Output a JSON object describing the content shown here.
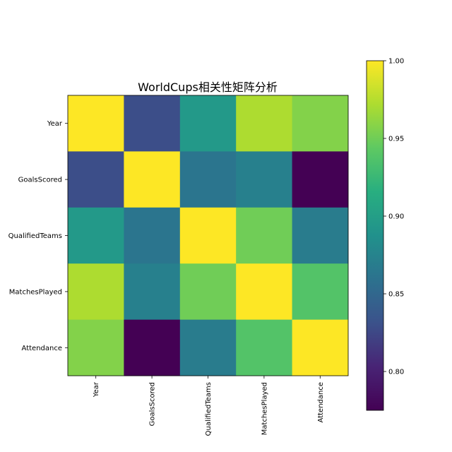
{
  "chart_data": {
    "type": "heatmap",
    "title": "WorldCups相关性矩阵分析",
    "xlabel": "",
    "ylabel": "",
    "x_categories": [
      "Year",
      "GoalsScored",
      "QualifiedTeams",
      "MatchesPlayed",
      "Attendance"
    ],
    "y_categories": [
      "Year",
      "GoalsScored",
      "QualifiedTeams",
      "MatchesPlayed",
      "Attendance"
    ],
    "matrix": [
      [
        1.0,
        0.829,
        0.895,
        0.972,
        0.957
      ],
      [
        0.829,
        1.0,
        0.862,
        0.872,
        0.775
      ],
      [
        0.895,
        0.862,
        1.0,
        0.95,
        0.868
      ],
      [
        0.972,
        0.872,
        0.95,
        1.0,
        0.938
      ],
      [
        0.957,
        0.775,
        0.868,
        0.938,
        1.0
      ]
    ],
    "colormap": "viridis",
    "colorbar": {
      "range": [
        0.775,
        1.0
      ],
      "ticks": [
        0.8,
        0.85,
        0.9,
        0.95,
        1.0
      ],
      "tick_labels": [
        "0.80",
        "0.85",
        "0.90",
        "0.95",
        "1.00"
      ]
    },
    "grid": false,
    "legend": "none"
  }
}
